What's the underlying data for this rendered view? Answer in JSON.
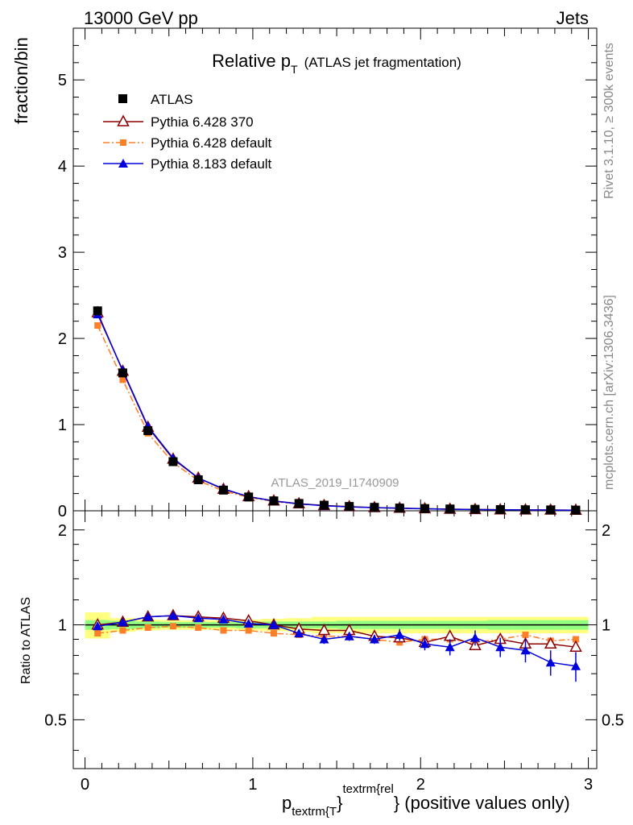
{
  "header": {
    "left": "13000 GeV pp",
    "right": "Jets"
  },
  "main_plot": {
    "title_main": "Relative p",
    "title_sub": "T",
    "title_extra": "(ATLAS jet fragmentation)",
    "ylabel": "fraction/bin",
    "analysis_id": "ATLAS_2019_I1740909"
  },
  "ratio_plot": {
    "ylabel": "Ratio to ATLAS"
  },
  "x_axis": {
    "label_p": "p",
    "label_sub": "textrm{T",
    "label_sup": "textrm{rel",
    "label_tail": "} (positive values only)"
  },
  "side_texts": {
    "rivet": "Rivet 3.1.10, ≥ 300k events",
    "mcplots": "mcplots.cern.ch [arXiv:1306.3436]"
  },
  "colors": {
    "atlas": "#000000",
    "py6_370": "#8b0000",
    "py6_default": "#ff7f27",
    "py8": "#0000dd"
  },
  "chart_data": [
    {
      "type": "scatter",
      "role": "main",
      "title": "Relative pT (ATLAS jet fragmentation)",
      "xlabel": "p_T^rel (positive values only)",
      "ylabel": "fraction/bin",
      "xlim": [
        -0.07,
        3.05
      ],
      "ylim": [
        0,
        5.6
      ],
      "xticks": [
        0,
        1,
        2,
        3
      ],
      "yticks": [
        0,
        1,
        2,
        3,
        4,
        5
      ],
      "x": [
        0.075,
        0.225,
        0.375,
        0.525,
        0.675,
        0.825,
        0.975,
        1.125,
        1.275,
        1.425,
        1.575,
        1.725,
        1.875,
        2.025,
        2.175,
        2.325,
        2.475,
        2.625,
        2.775,
        2.925
      ],
      "series": [
        {
          "name": "ATLAS",
          "style": "data",
          "color": "#000000",
          "values": [
            2.32,
            1.6,
            0.93,
            0.57,
            0.36,
            0.24,
            0.16,
            0.115,
            0.085,
            0.065,
            0.05,
            0.04,
            0.032,
            0.026,
            0.021,
            0.017,
            0.014,
            0.012,
            0.01,
            0.008
          ]
        },
        {
          "name": "Pythia 6.428 370",
          "style": "open-triangle",
          "color": "#8b0000",
          "values": [
            2.3,
            1.62,
            0.97,
            0.6,
            0.38,
            0.25,
            0.165,
            0.115,
            0.082,
            0.062,
            0.048,
            0.037,
            0.03,
            0.024,
            0.019,
            0.015,
            0.012,
            0.011,
            0.009,
            0.007
          ]
        },
        {
          "name": "Pythia 6.428 default",
          "style": "square-dashdot",
          "color": "#ff7f27",
          "values": [
            2.15,
            1.52,
            0.9,
            0.56,
            0.35,
            0.23,
            0.155,
            0.108,
            0.079,
            0.06,
            0.046,
            0.036,
            0.028,
            0.023,
            0.019,
            0.015,
            0.013,
            0.011,
            0.009,
            0.007
          ]
        },
        {
          "name": "Pythia 8.183 default",
          "style": "filled-triangle",
          "color": "#0000dd",
          "values": [
            2.28,
            1.63,
            0.98,
            0.61,
            0.38,
            0.255,
            0.163,
            0.115,
            0.08,
            0.058,
            0.046,
            0.036,
            0.03,
            0.023,
            0.018,
            0.015,
            0.012,
            0.01,
            0.008,
            0.006
          ]
        }
      ],
      "legend": "top-left"
    },
    {
      "type": "scatter",
      "role": "ratio",
      "ylabel": "Ratio to ATLAS",
      "xlim": [
        -0.07,
        3.05
      ],
      "ylim": [
        0.35,
        2.3
      ],
      "yticks": [
        0.5,
        1,
        2
      ],
      "yscale": "log",
      "x": [
        0.075,
        0.225,
        0.375,
        0.525,
        0.675,
        0.825,
        0.975,
        1.125,
        1.275,
        1.425,
        1.575,
        1.725,
        1.875,
        2.025,
        2.175,
        2.325,
        2.475,
        2.625,
        2.775,
        2.925
      ],
      "bands": {
        "inner_half_width": [
          0.035,
          0.03,
          0.025,
          0.02,
          0.02,
          0.02,
          0.025,
          0.025,
          0.025,
          0.025,
          0.03,
          0.03,
          0.03,
          0.03,
          0.03,
          0.03,
          0.035,
          0.035,
          0.035,
          0.035
        ],
        "outer_half_width": [
          0.095,
          0.05,
          0.04,
          0.035,
          0.035,
          0.035,
          0.04,
          0.045,
          0.05,
          0.06,
          0.06,
          0.06,
          0.06,
          0.06,
          0.06,
          0.06,
          0.06,
          0.06,
          0.06,
          0.06
        ]
      },
      "series": [
        {
          "name": "Pythia 6.428 370",
          "color": "#8b0000",
          "values": [
            1.0,
            1.02,
            1.06,
            1.07,
            1.06,
            1.05,
            1.03,
            1.0,
            0.97,
            0.96,
            0.96,
            0.92,
            0.91,
            0.88,
            0.92,
            0.86,
            0.9,
            0.87,
            0.87,
            0.85
          ],
          "errors": [
            0.01,
            0.01,
            0.01,
            0.01,
            0.01,
            0.01,
            0.01,
            0.01,
            0.01,
            0.01,
            0.02,
            0.02,
            0.02,
            0.02,
            0.02,
            0.02,
            0.02,
            0.02,
            0.02,
            0.02
          ]
        },
        {
          "name": "Pythia 6.428 default",
          "color": "#ff7f27",
          "values": [
            0.94,
            0.96,
            0.98,
            0.99,
            0.98,
            0.96,
            0.96,
            0.94,
            0.93,
            0.92,
            0.92,
            0.9,
            0.88,
            0.9,
            0.9,
            0.88,
            0.9,
            0.93,
            0.89,
            0.9
          ],
          "errors": [
            0.01,
            0.01,
            0.01,
            0.01,
            0.01,
            0.01,
            0.01,
            0.01,
            0.01,
            0.01,
            0.01,
            0.01,
            0.01,
            0.02,
            0.02,
            0.02,
            0.02,
            0.02,
            0.02,
            0.02
          ]
        },
        {
          "name": "Pythia 8.183 default",
          "color": "#0000dd",
          "values": [
            0.99,
            1.02,
            1.06,
            1.07,
            1.05,
            1.04,
            1.01,
            1.0,
            0.94,
            0.9,
            0.92,
            0.9,
            0.93,
            0.87,
            0.85,
            0.91,
            0.85,
            0.83,
            0.76,
            0.74
          ],
          "errors": [
            0.01,
            0.01,
            0.01,
            0.01,
            0.01,
            0.01,
            0.015,
            0.03,
            0.02,
            0.03,
            0.03,
            0.03,
            0.04,
            0.04,
            0.05,
            0.05,
            0.06,
            0.07,
            0.07,
            0.08
          ]
        }
      ],
      "reference_line": 1
    }
  ]
}
